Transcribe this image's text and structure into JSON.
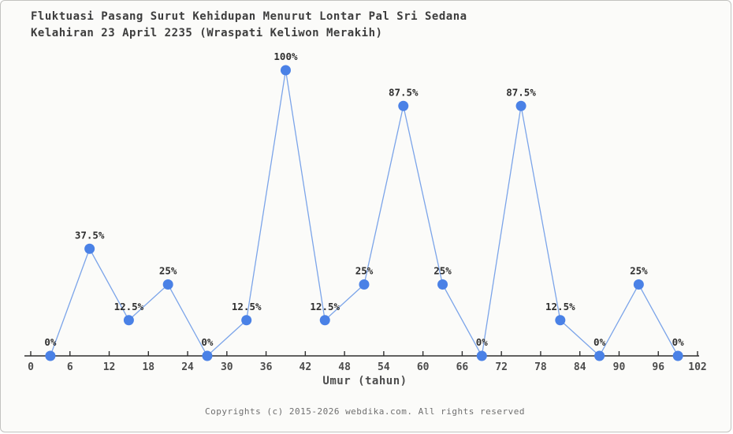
{
  "header": {
    "title_line1": "Fluktuasi Pasang Surut Kehidupan Menurut Lontar Pal Sri Sedana",
    "title_line2": "Kelahiran 23 April 2235 (Wraspati Keliwon Merakih)"
  },
  "chart_data": {
    "type": "line",
    "title": "Fluktuasi Pasang Surut Kehidupan Menurut Lontar Pal Sri Sedana Kelahiran 23 April 2235 (Wraspati Keliwon Merakih)",
    "xlabel": "Umur (tahun)",
    "ylabel": "",
    "x": [
      3,
      9,
      15,
      21,
      27,
      33,
      39,
      45,
      51,
      57,
      63,
      69,
      75,
      81,
      87,
      93,
      99
    ],
    "values": [
      0,
      37.5,
      12.5,
      25,
      0,
      12.5,
      100,
      12.5,
      25,
      87.5,
      25,
      0,
      87.5,
      12.5,
      0,
      25,
      0
    ],
    "point_labels": [
      "0%",
      "37.5%",
      "12.5%",
      "25%",
      "0%",
      "12.5%",
      "100%",
      "12.5%",
      "25%",
      "87.5%",
      "25%",
      "0%",
      "87.5%",
      "12.5%",
      "0%",
      "25%",
      "0%"
    ],
    "x_ticks": [
      0,
      6,
      12,
      18,
      24,
      30,
      36,
      42,
      48,
      54,
      60,
      66,
      72,
      78,
      84,
      90,
      96,
      102
    ],
    "xlim": [
      0,
      102
    ],
    "ylim": [
      0,
      100
    ],
    "grid": false,
    "legend": "none",
    "colors": {
      "line": "#7ba4e9",
      "marker": "#4a81e6",
      "axis": "#2f2f2f",
      "tick_label": "#4c4c4c",
      "point_label": "#2e2e2e"
    }
  },
  "footer": {
    "copyright": "Copyrights (c) 2015-2026 webdika.com. All rights reserved"
  }
}
